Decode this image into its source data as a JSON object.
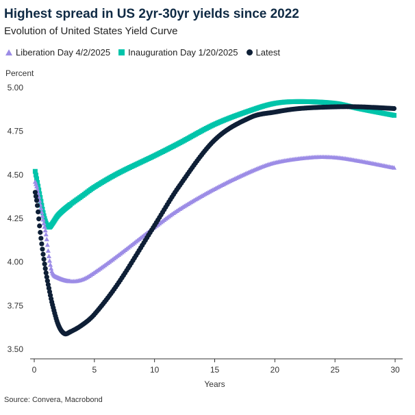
{
  "header": {
    "title": "Highest spread in US 2yr-30yr yields since 2022",
    "subtitle": "Evolution of United States Yield Curve"
  },
  "footer": {
    "source": "Source: Convera, Macrobond"
  },
  "colors": {
    "liberation": "#9c8ce6",
    "inauguration": "#00c4aa",
    "latest": "#0e1f36",
    "axis": "#333333"
  },
  "chart_data": {
    "type": "scatter",
    "title": "Highest spread in US 2yr-30yr yields since 2022",
    "subtitle": "Evolution of United States Yield Curve",
    "xlabel": "Years",
    "ylabel": "Percent",
    "xlim": [
      0,
      30
    ],
    "ylim": [
      3.5,
      5.0
    ],
    "x_ticks": [
      "0",
      "5",
      "10",
      "15",
      "20",
      "25",
      "30"
    ],
    "y_ticks": [
      "3.50",
      "3.75",
      "4.00",
      "4.25",
      "4.50",
      "4.75",
      "5.00"
    ],
    "grid": false,
    "legend_position": "top",
    "series": [
      {
        "name": "Liberation Day 4/2/2025",
        "marker": "triangle",
        "color": "#9c8ce6",
        "points": [
          [
            0.08,
            4.46
          ],
          [
            0.25,
            4.42
          ],
          [
            0.5,
            4.33
          ],
          [
            0.75,
            4.24
          ],
          [
            1.0,
            4.15
          ],
          [
            1.25,
            4.02
          ],
          [
            1.5,
            3.94
          ],
          [
            2.0,
            3.91
          ],
          [
            3.0,
            3.89
          ],
          [
            4.0,
            3.9
          ],
          [
            5.0,
            3.94
          ],
          [
            7.0,
            4.04
          ],
          [
            10.0,
            4.2
          ],
          [
            12.0,
            4.3
          ],
          [
            15.0,
            4.42
          ],
          [
            18.0,
            4.52
          ],
          [
            20.0,
            4.57
          ],
          [
            23.0,
            4.6
          ],
          [
            25.0,
            4.6
          ],
          [
            27.0,
            4.58
          ],
          [
            30.0,
            4.54
          ]
        ]
      },
      {
        "name": "Inauguration Day 1/20/2025",
        "marker": "square",
        "color": "#00c4aa",
        "points": [
          [
            0.08,
            4.52
          ],
          [
            0.25,
            4.46
          ],
          [
            0.5,
            4.37
          ],
          [
            0.75,
            4.28
          ],
          [
            1.0,
            4.22
          ],
          [
            1.25,
            4.2
          ],
          [
            1.5,
            4.22
          ],
          [
            2.0,
            4.27
          ],
          [
            3.0,
            4.33
          ],
          [
            4.0,
            4.38
          ],
          [
            5.0,
            4.43
          ],
          [
            7.0,
            4.51
          ],
          [
            10.0,
            4.61
          ],
          [
            12.0,
            4.68
          ],
          [
            15.0,
            4.79
          ],
          [
            18.0,
            4.87
          ],
          [
            20.0,
            4.91
          ],
          [
            22.0,
            4.92
          ],
          [
            25.0,
            4.91
          ],
          [
            27.0,
            4.88
          ],
          [
            30.0,
            4.84
          ]
        ]
      },
      {
        "name": "Latest",
        "marker": "circle",
        "color": "#0e1f36",
        "points": [
          [
            0.08,
            4.4
          ],
          [
            0.25,
            4.33
          ],
          [
            0.5,
            4.17
          ],
          [
            0.75,
            4.04
          ],
          [
            1.0,
            3.93
          ],
          [
            1.25,
            3.84
          ],
          [
            1.5,
            3.76
          ],
          [
            2.0,
            3.64
          ],
          [
            2.5,
            3.59
          ],
          [
            3.0,
            3.6
          ],
          [
            4.0,
            3.64
          ],
          [
            5.0,
            3.7
          ],
          [
            7.0,
            3.88
          ],
          [
            10.0,
            4.21
          ],
          [
            12.0,
            4.43
          ],
          [
            15.0,
            4.7
          ],
          [
            18.0,
            4.83
          ],
          [
            20.0,
            4.86
          ],
          [
            22.0,
            4.88
          ],
          [
            25.0,
            4.89
          ],
          [
            27.0,
            4.89
          ],
          [
            30.0,
            4.88
          ]
        ]
      }
    ]
  }
}
